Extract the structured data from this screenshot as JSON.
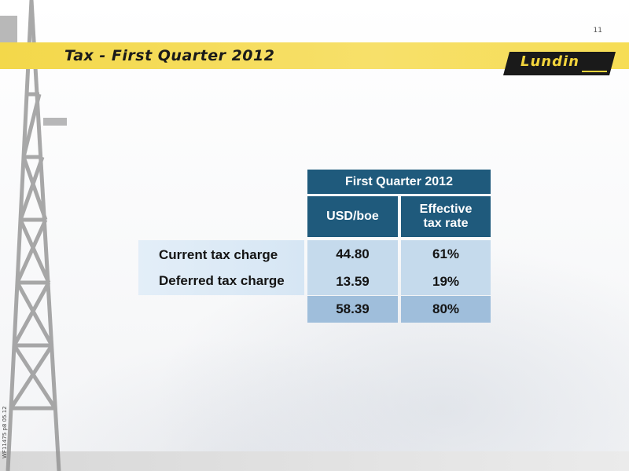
{
  "slide": {
    "page_number": "11",
    "title": "Tax - First Quarter 2012",
    "logo_text": "Lundin",
    "side_reference": "WF11475 p8 05.12",
    "colors": {
      "header_blue": "#1f5a7c",
      "title_yellow": "#f3d84a"
    }
  },
  "table": {
    "group_header": "First Quarter 2012",
    "columns": [
      "USD/boe",
      "Effective tax rate"
    ],
    "rows": [
      {
        "label": "Current tax charge",
        "usd_boe": "44.80",
        "rate": "61%"
      },
      {
        "label": "Deferred tax charge",
        "usd_boe": "13.59",
        "rate": "19%"
      }
    ],
    "total": {
      "usd_boe": "58.39",
      "rate": "80%"
    }
  }
}
